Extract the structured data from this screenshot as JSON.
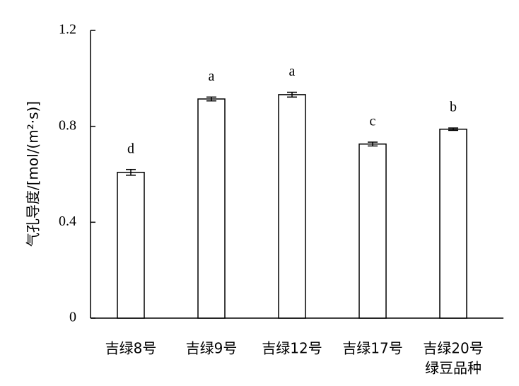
{
  "chart_data": {
    "type": "bar",
    "y_label": "气孔导度/[mol/(m²·s)]",
    "x_label": "绿豆品种",
    "categories": [
      "吉绿8号",
      "吉绿9号",
      "吉绿12号",
      "吉绿17号",
      "吉绿20号"
    ],
    "values": [
      0.608,
      0.914,
      0.932,
      0.726,
      0.788
    ],
    "errors": [
      0.012,
      0.008,
      0.01,
      0.008,
      0.005
    ],
    "letters": [
      "d",
      "a",
      "a",
      "c",
      "b"
    ],
    "color": "#ffffff",
    "ylim": [
      0,
      1.2
    ],
    "yticks": [
      0,
      0.4,
      0.8,
      1.2
    ],
    "grid": false
  }
}
